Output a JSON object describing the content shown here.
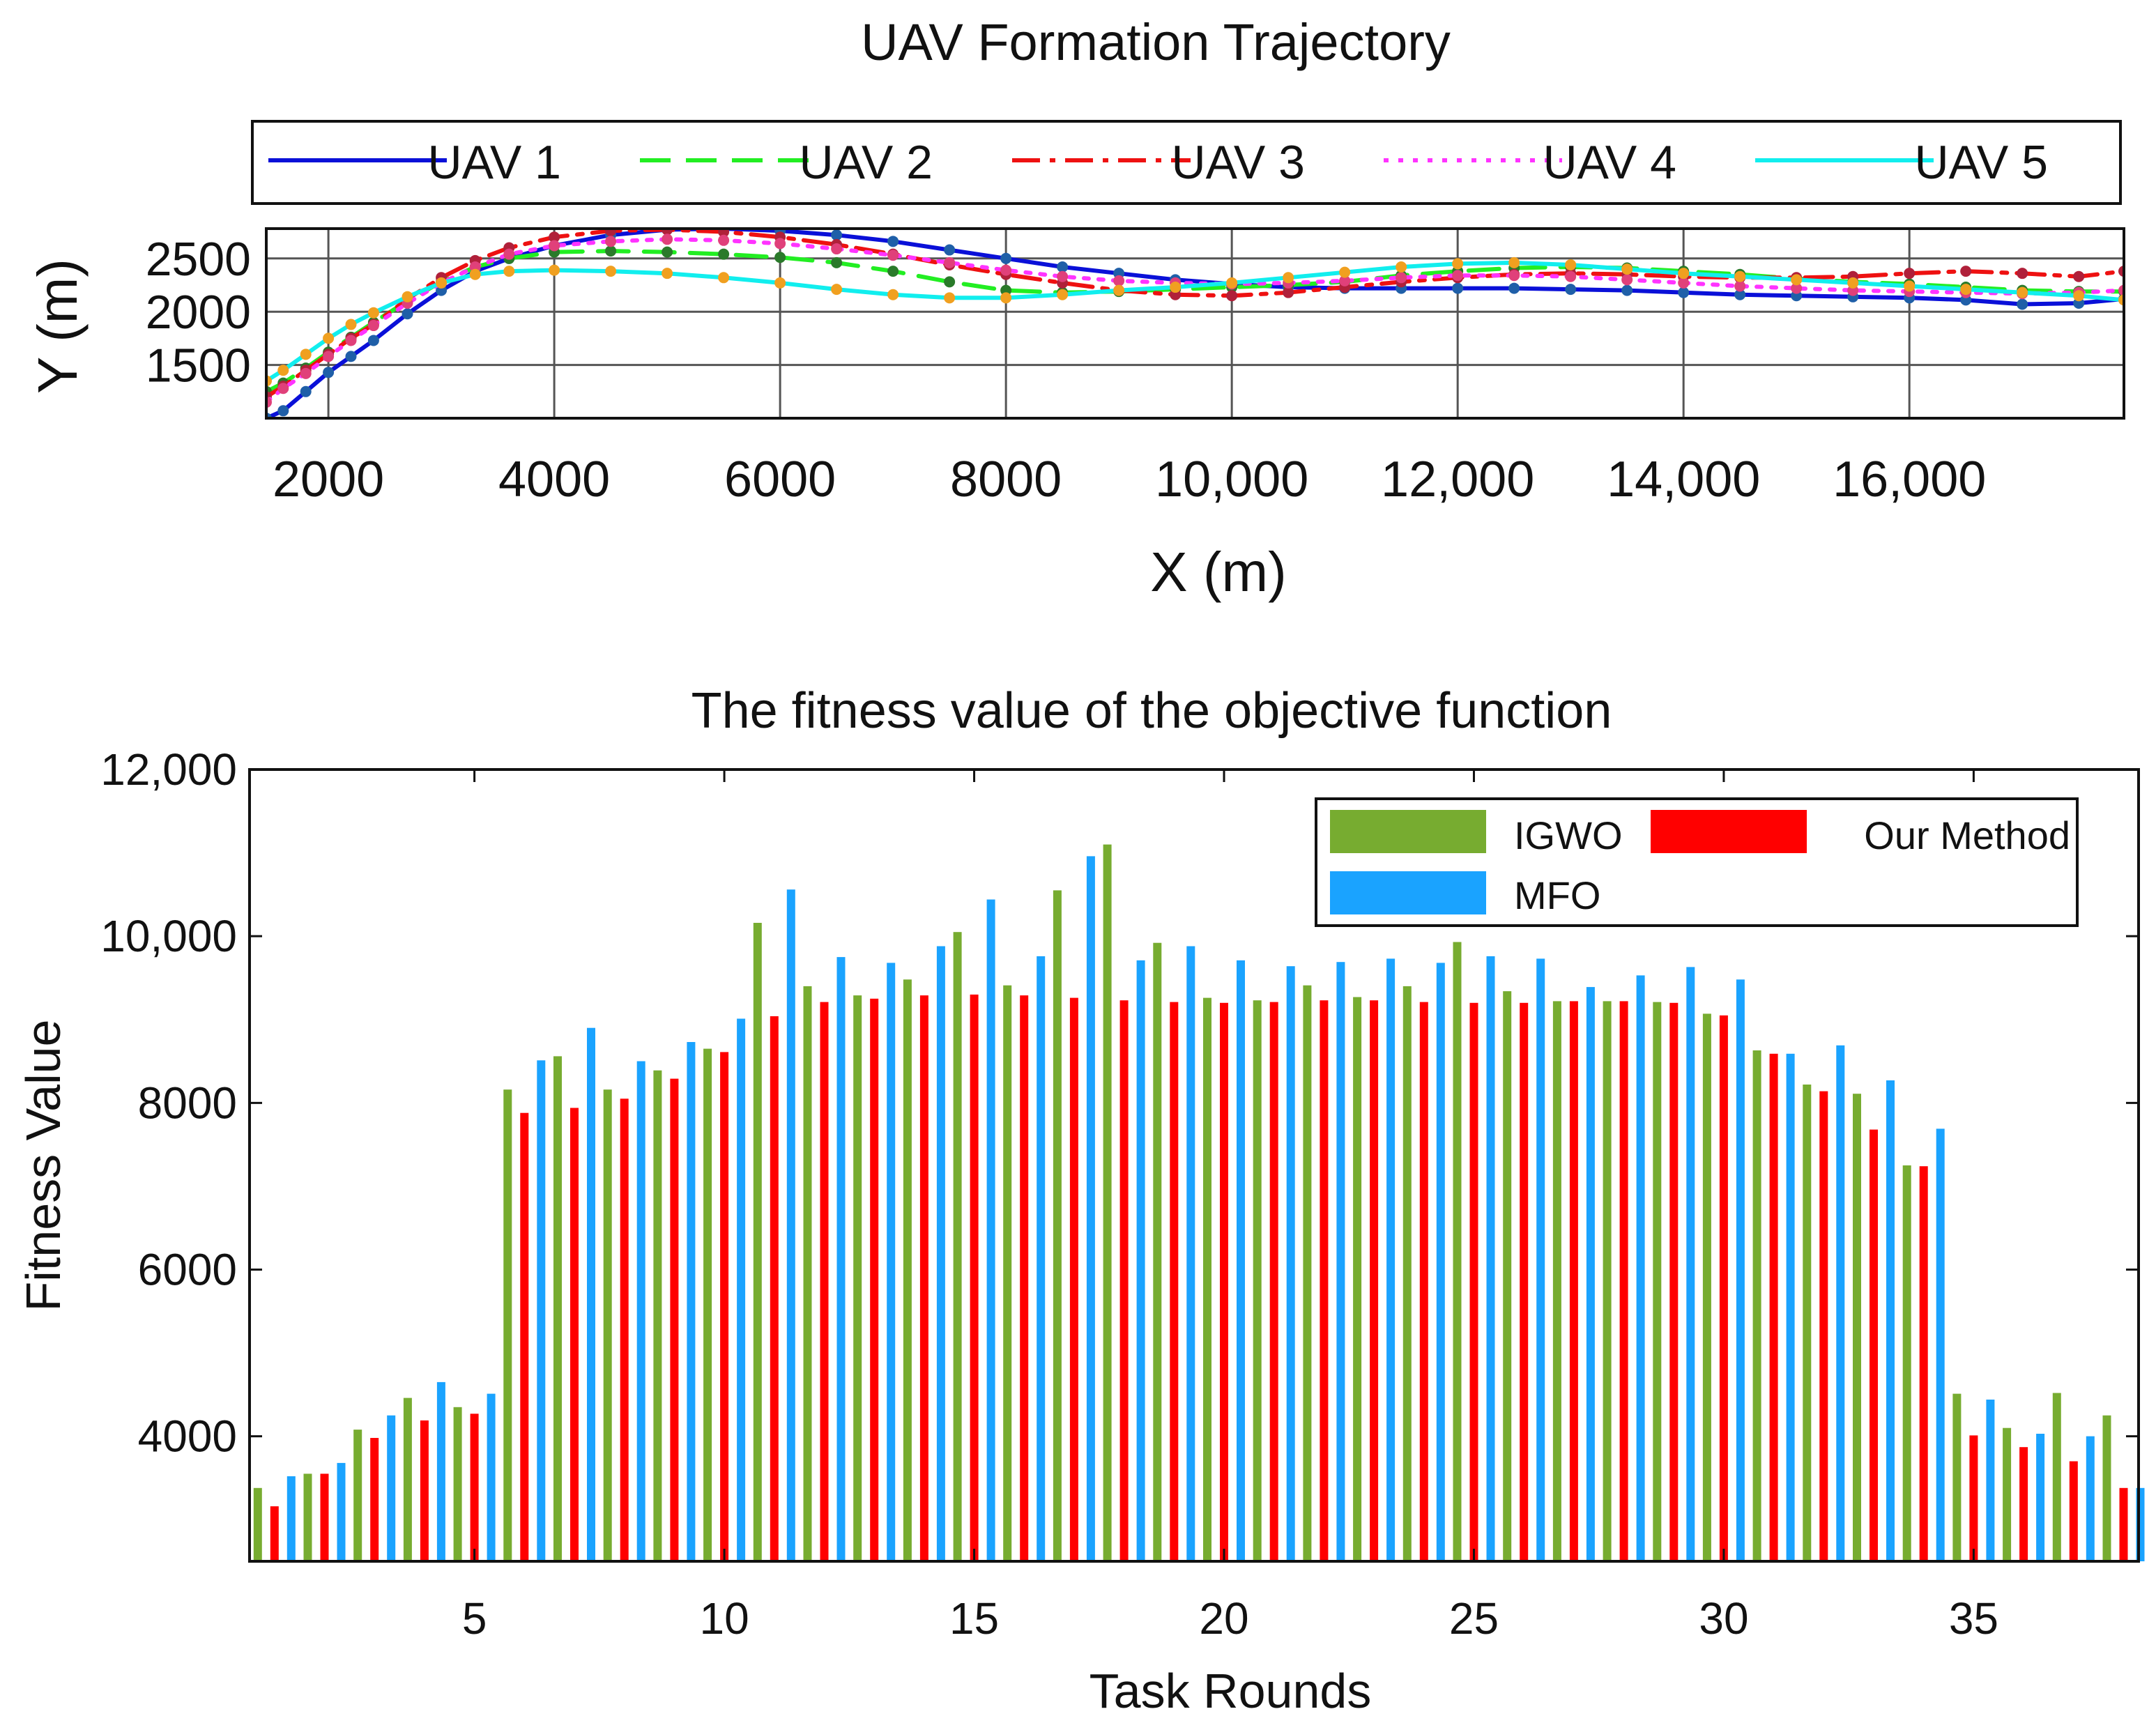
{
  "chart_data": [
    {
      "type": "line",
      "title": "UAV Formation Trajectory",
      "xlabel": "X (m)",
      "ylabel": "Y (m)",
      "xlim": [
        1450,
        17900
      ],
      "ylim": [
        1000,
        2780
      ],
      "xticks": [
        2000,
        4000,
        6000,
        8000,
        10000,
        12000,
        14000,
        16000
      ],
      "xtick_labels": [
        "2000",
        "4000",
        "6000",
        "8000",
        "10,000",
        "12,000",
        "14,000",
        "16,000"
      ],
      "yticks": [
        1500,
        2000,
        2500
      ],
      "ytick_labels": [
        "1500",
        "2000",
        "2500"
      ],
      "grid": true,
      "legend_position": "top-outside",
      "x": [
        1450,
        1600,
        1800,
        2000,
        2200,
        2400,
        2700,
        3000,
        3300,
        3600,
        4000,
        4500,
        5000,
        5500,
        6000,
        6500,
        7000,
        7500,
        8000,
        8500,
        9000,
        9500,
        10000,
        10500,
        11000,
        11500,
        12000,
        12500,
        13000,
        13500,
        14000,
        14500,
        15000,
        15500,
        16000,
        16500,
        17000,
        17500,
        17900
      ],
      "series": [
        {
          "name": "UAV 1",
          "color": "#0a10d8",
          "dash": "solid",
          "marker_color": "#1f5fa8",
          "y": [
            1000,
            1070,
            1250,
            1430,
            1580,
            1730,
            1980,
            2200,
            2380,
            2500,
            2620,
            2720,
            2770,
            2780,
            2760,
            2720,
            2660,
            2580,
            2500,
            2420,
            2360,
            2300,
            2260,
            2230,
            2220,
            2220,
            2220,
            2220,
            2210,
            2200,
            2180,
            2160,
            2150,
            2140,
            2130,
            2110,
            2070,
            2080,
            2120
          ]
        },
        {
          "name": "UAV 2",
          "color": "#22ee22",
          "dash": "dashed",
          "marker_color": "#2a7a2a",
          "y": [
            1250,
            1330,
            1470,
            1620,
            1760,
            1900,
            2100,
            2280,
            2420,
            2500,
            2560,
            2570,
            2560,
            2540,
            2510,
            2460,
            2380,
            2280,
            2200,
            2180,
            2190,
            2210,
            2230,
            2250,
            2280,
            2340,
            2380,
            2410,
            2420,
            2410,
            2380,
            2350,
            2310,
            2280,
            2260,
            2230,
            2200,
            2190,
            2190
          ]
        },
        {
          "name": "UAV 3",
          "color": "#ee1111",
          "dash": "dashdot",
          "marker_color": "#b0203a",
          "y": [
            1200,
            1300,
            1450,
            1600,
            1750,
            1880,
            2120,
            2320,
            2480,
            2600,
            2700,
            2760,
            2770,
            2750,
            2700,
            2630,
            2540,
            2440,
            2350,
            2270,
            2200,
            2160,
            2150,
            2180,
            2230,
            2280,
            2320,
            2350,
            2360,
            2350,
            2330,
            2320,
            2320,
            2330,
            2360,
            2380,
            2360,
            2330,
            2380
          ]
        },
        {
          "name": "UAV 4",
          "color": "#ff33ff",
          "dash": "dotted",
          "marker_color": "#e0407a",
          "y": [
            1150,
            1280,
            1420,
            1580,
            1730,
            1870,
            2080,
            2270,
            2420,
            2540,
            2620,
            2660,
            2680,
            2670,
            2640,
            2590,
            2530,
            2460,
            2390,
            2330,
            2290,
            2270,
            2260,
            2270,
            2290,
            2320,
            2340,
            2340,
            2330,
            2300,
            2270,
            2240,
            2220,
            2200,
            2190,
            2180,
            2170,
            2180,
            2200
          ]
        },
        {
          "name": "UAV 5",
          "color": "#11eeee",
          "dash": "solid",
          "marker_color": "#f0a020",
          "y": [
            1350,
            1450,
            1600,
            1750,
            1880,
            1990,
            2140,
            2270,
            2350,
            2380,
            2390,
            2380,
            2360,
            2320,
            2270,
            2210,
            2160,
            2130,
            2130,
            2160,
            2200,
            2230,
            2270,
            2320,
            2370,
            2420,
            2450,
            2460,
            2440,
            2400,
            2360,
            2330,
            2300,
            2270,
            2240,
            2210,
            2180,
            2150,
            2110
          ]
        }
      ]
    },
    {
      "type": "bar",
      "title": "The fitness value of the objective function",
      "xlabel": "Task Rounds",
      "ylabel": "Fitness Value",
      "ylim": [
        2500,
        12000
      ],
      "xlim": [
        0.5,
        38.3
      ],
      "yticks": [
        4000,
        6000,
        8000,
        10000,
        12000
      ],
      "ytick_labels": [
        "4000",
        "6000",
        "8000",
        "10,000",
        "12,000"
      ],
      "xticks": [
        5,
        10,
        15,
        20,
        25,
        30,
        35
      ],
      "xtick_labels": [
        "5",
        "10",
        "15",
        "20",
        "25",
        "30",
        "35"
      ],
      "grid": false,
      "legend_position": "top-right",
      "categories": [
        "1",
        "2",
        "3",
        "4",
        "5",
        "6",
        "7",
        "8",
        "9",
        "10",
        "11",
        "12",
        "13",
        "14",
        "15",
        "16",
        "17",
        "18",
        "19",
        "20",
        "21",
        "22",
        "23",
        "24",
        "25",
        "26",
        "27",
        "28",
        "29",
        "30",
        "31",
        "32",
        "33",
        "34",
        "35",
        "36",
        "37",
        "38"
      ],
      "series": [
        {
          "name": "IGWO",
          "color": "#77ac30",
          "values": [
            3380,
            3550,
            4080,
            4460,
            4350,
            8160,
            8560,
            8160,
            8390,
            8650,
            10160,
            9400,
            9290,
            9480,
            10050,
            9410,
            10550,
            11100,
            9920,
            9260,
            9230,
            9410,
            9270,
            9400,
            9930,
            9340,
            9220,
            9220,
            9210,
            9070,
            8630,
            8220,
            8110,
            7250,
            4510,
            4100,
            4520,
            4250
          ]
        },
        {
          "name": "Our Method",
          "color": "#ff0000",
          "values": [
            3160,
            3550,
            3980,
            4190,
            4270,
            7880,
            7940,
            8050,
            8290,
            8610,
            9040,
            9210,
            9250,
            9290,
            9300,
            9290,
            9260,
            9230,
            9210,
            9200,
            9210,
            9230,
            9230,
            9210,
            9200,
            9200,
            9220,
            9220,
            9200,
            9050,
            8590,
            8140,
            7680,
            7240,
            4010,
            3870,
            3700,
            3380
          ]
        },
        {
          "name": "MFO",
          "color": "#1aa3ff",
          "values": [
            3520,
            3680,
            4250,
            4650,
            4510,
            8510,
            8900,
            8500,
            8730,
            9010,
            10560,
            9750,
            9680,
            9880,
            10440,
            9760,
            10960,
            9710,
            9880,
            9710,
            9640,
            9690,
            9730,
            9680,
            9760,
            9730,
            9390,
            9530,
            9630,
            9480,
            8590,
            8690,
            8270,
            7690,
            4440,
            4030,
            4000,
            3380
          ]
        }
      ]
    }
  ]
}
